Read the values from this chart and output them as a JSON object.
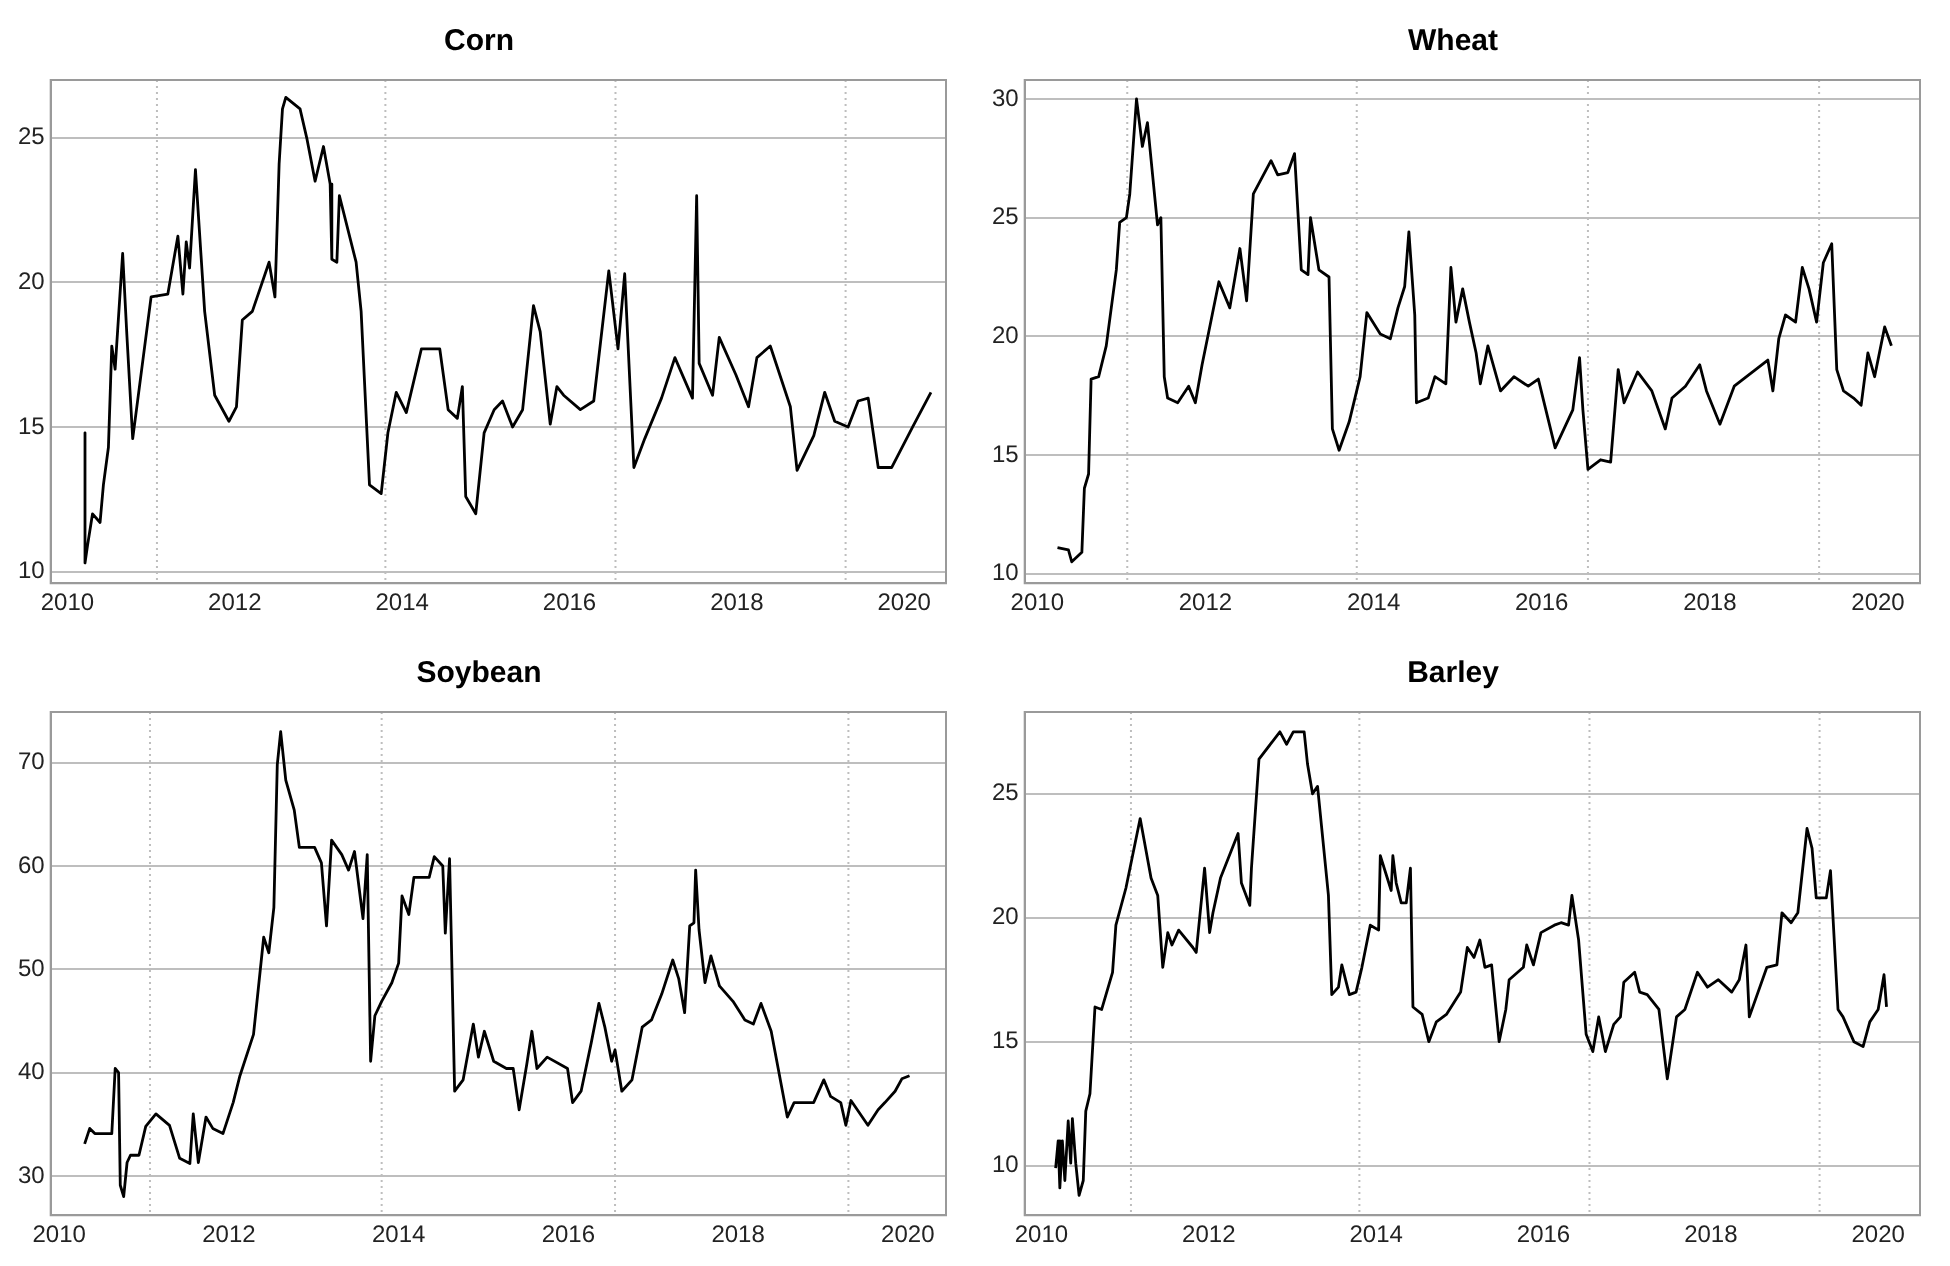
{
  "chart_data": [
    {
      "type": "line",
      "title": "Corn",
      "xlim": [
        2009.8,
        2020.5
      ],
      "xticks": [
        2010,
        2012,
        2014,
        2016,
        2018,
        2020
      ],
      "ylim": [
        9.6,
        27.0
      ],
      "yticks": [
        10,
        15,
        20,
        25
      ],
      "grid": "y",
      "color": "#000000",
      "ref_lines": [
        {
          "axis": "x",
          "value": 2011.07,
          "color": "#bebebe",
          "line_style": "dotted"
        },
        {
          "axis": "x",
          "value": 2013.8,
          "color": "#bebebe",
          "line_style": "dotted"
        },
        {
          "axis": "x",
          "value": 2016.55,
          "color": "#bebebe",
          "line_style": "dotted"
        },
        {
          "axis": "x",
          "value": 2019.3,
          "color": "#bebebe",
          "line_style": "dotted"
        }
      ],
      "x": [
        2010.21,
        2010.21,
        2010.24,
        2010.3,
        2010.39,
        2010.43,
        2010.49,
        2010.53,
        2010.57,
        2010.66,
        2010.71,
        2010.78,
        2011.0,
        2011.2,
        2011.32,
        2011.38,
        2011.42,
        2011.46,
        2011.53,
        2011.64,
        2011.76,
        2011.93,
        2012.02,
        2012.09,
        2012.21,
        2012.41,
        2012.48,
        2012.53,
        2012.57,
        2012.61,
        2012.78,
        2012.86,
        2012.96,
        2013.06,
        2013.14,
        2013.16,
        2013.22,
        2013.25,
        2013.45,
        2013.51,
        2013.61,
        2013.75,
        2013.83,
        2013.93,
        2014.05,
        2014.23,
        2014.45,
        2014.55,
        2014.66,
        2014.72,
        2014.76,
        2014.88,
        2014.98,
        2015.1,
        2015.2,
        2015.32,
        2015.44,
        2015.57,
        2015.65,
        2015.77,
        2015.85,
        2015.93,
        2016.13,
        2016.29,
        2016.47,
        2016.58,
        2016.66,
        2016.77,
        2016.9,
        2017.1,
        2017.26,
        2017.47,
        2017.52,
        2017.55,
        2017.71,
        2017.79,
        2017.99,
        2018.14,
        2018.24,
        2018.4,
        2018.64,
        2018.72,
        2018.92,
        2019.05,
        2019.17,
        2019.33,
        2019.45,
        2019.57,
        2019.69,
        2019.85,
        2020.1,
        2020.32
      ],
      "values": [
        14.8,
        10.3,
        10.9,
        12,
        11.7,
        13,
        14.3,
        17.8,
        17,
        21,
        18.2,
        14.6,
        19.5,
        19.6,
        21.6,
        19.6,
        21.4,
        20.5,
        23.9,
        19,
        16.1,
        15.2,
        15.7,
        18.7,
        19,
        20.7,
        19.5,
        24.1,
        26,
        26.4,
        26,
        25,
        23.5,
        24.7,
        23.4,
        20.8,
        20.7,
        23,
        20.7,
        19,
        13,
        12.7,
        14.8,
        16.2,
        15.5,
        17.7,
        17.7,
        15.6,
        15.3,
        16.4,
        12.6,
        12,
        14.8,
        15.6,
        15.9,
        15,
        15.6,
        19.2,
        18.3,
        15.1,
        16.4,
        16.1,
        15.6,
        15.9,
        20.4,
        17.7,
        20.3,
        13.6,
        14.6,
        16,
        17.4,
        16,
        23,
        17.2,
        16.1,
        18.1,
        16.8,
        15.7,
        17.4,
        17.8,
        15.7,
        13.5,
        14.7,
        16.2,
        15.2,
        15,
        15.9,
        16,
        13.6,
        13.6,
        15,
        16.2
      ]
    },
    {
      "type": "line",
      "title": "Wheat",
      "xlim": [
        2009.85,
        2020.5
      ],
      "xticks": [
        2010,
        2012,
        2014,
        2016,
        2018,
        2020
      ],
      "ylim": [
        9.6,
        30.8
      ],
      "yticks": [
        10,
        15,
        20,
        25,
        30
      ],
      "grid": "y",
      "color": "#000000",
      "ref_lines": [
        {
          "axis": "x",
          "value": 2011.07,
          "color": "#bebebe",
          "line_style": "dotted"
        },
        {
          "axis": "x",
          "value": 2013.8,
          "color": "#bebebe",
          "line_style": "dotted"
        },
        {
          "axis": "x",
          "value": 2016.55,
          "color": "#bebebe",
          "line_style": "dotted"
        },
        {
          "axis": "x",
          "value": 2019.3,
          "color": "#bebebe",
          "line_style": "dotted"
        }
      ],
      "x": [
        2010.24,
        2010.37,
        2010.41,
        2010.53,
        2010.56,
        2010.61,
        2010.64,
        2010.73,
        2010.82,
        2010.94,
        2010.98,
        2011.06,
        2011.1,
        2011.18,
        2011.25,
        2011.31,
        2011.43,
        2011.47,
        2011.51,
        2011.55,
        2011.67,
        2011.8,
        2011.88,
        2011.96,
        2012.08,
        2012.16,
        2012.29,
        2012.41,
        2012.49,
        2012.57,
        2012.78,
        2012.86,
        2012.98,
        2013.06,
        2013.14,
        2013.22,
        2013.25,
        2013.35,
        2013.47,
        2013.51,
        2013.59,
        2013.71,
        2013.84,
        2013.92,
        2014.08,
        2014.2,
        2014.29,
        2014.37,
        2014.42,
        2014.49,
        2014.51,
        2014.65,
        2014.73,
        2014.86,
        2014.92,
        2014.98,
        2015.06,
        2015.14,
        2015.22,
        2015.27,
        2015.36,
        2015.51,
        2015.67,
        2015.84,
        2015.96,
        2016.16,
        2016.37,
        2016.45,
        2016.49,
        2016.55,
        2016.7,
        2016.82,
        2016.91,
        2016.98,
        2017.14,
        2017.31,
        2017.47,
        2017.55,
        2017.71,
        2017.88,
        2017.96,
        2018.12,
        2018.29,
        2018.69,
        2018.75,
        2018.82,
        2018.9,
        2019.02,
        2019.1,
        2019.18,
        2019.27,
        2019.35,
        2019.45,
        2019.51,
        2019.59,
        2019.71,
        2019.8,
        2019.88,
        2019.96,
        2020.08,
        2020.16
      ],
      "values": [
        11.1,
        11,
        10.5,
        10.9,
        13.6,
        14.2,
        18.2,
        18.3,
        19.6,
        22.8,
        24.8,
        25,
        26,
        30,
        28,
        29,
        24.7,
        25,
        18.3,
        17.4,
        17.2,
        17.9,
        17.2,
        18.8,
        20.9,
        22.3,
        21.2,
        23.7,
        21.5,
        26,
        27.4,
        26.8,
        26.9,
        27.7,
        22.8,
        22.6,
        25,
        22.8,
        22.5,
        16.1,
        15.2,
        16.4,
        18.3,
        21,
        20.1,
        19.9,
        21.2,
        22.1,
        24.4,
        20.9,
        17.2,
        17.4,
        18.3,
        18,
        22.9,
        20.6,
        22,
        20.6,
        19.3,
        18,
        19.6,
        17.7,
        18.3,
        17.9,
        18.2,
        15.3,
        16.9,
        19.1,
        16.9,
        14.4,
        14.8,
        14.7,
        18.6,
        17.2,
        18.5,
        17.7,
        16.1,
        17.4,
        17.9,
        18.8,
        17.7,
        16.3,
        17.9,
        19,
        17.7,
        19.9,
        20.9,
        20.6,
        22.9,
        22,
        20.6,
        23.1,
        23.9,
        18.6,
        17.7,
        17.4,
        17.1,
        19.3,
        18.3,
        20.4,
        19.6
      ]
    },
    {
      "type": "line",
      "title": "Soybean",
      "xlim": [
        2009.9,
        2020.45
      ],
      "xticks": [
        2010,
        2012,
        2014,
        2016,
        2018,
        2020
      ],
      "ylim": [
        26.2,
        74.9
      ],
      "yticks": [
        30,
        40,
        50,
        60,
        70
      ],
      "grid": "y",
      "color": "#000000",
      "ref_lines": [
        {
          "axis": "x",
          "value": 2011.07,
          "color": "#bebebe",
          "line_style": "dotted"
        },
        {
          "axis": "x",
          "value": 2013.8,
          "color": "#bebebe",
          "line_style": "dotted"
        },
        {
          "axis": "x",
          "value": 2016.55,
          "color": "#bebebe",
          "line_style": "dotted"
        },
        {
          "axis": "x",
          "value": 2019.3,
          "color": "#bebebe",
          "line_style": "dotted"
        }
      ],
      "x": [
        2010.3,
        2010.36,
        2010.42,
        2010.62,
        2010.66,
        2010.7,
        2010.72,
        2010.76,
        2010.8,
        2010.84,
        2010.94,
        2011.02,
        2011.14,
        2011.3,
        2011.42,
        2011.54,
        2011.58,
        2011.64,
        2011.73,
        2011.81,
        2011.93,
        2012.05,
        2012.13,
        2012.29,
        2012.41,
        2012.47,
        2012.53,
        2012.57,
        2012.61,
        2012.67,
        2012.77,
        2012.83,
        2013.01,
        2013.09,
        2013.15,
        2013.21,
        2013.33,
        2013.41,
        2013.48,
        2013.58,
        2013.63,
        2013.67,
        2013.72,
        2013.8,
        2013.92,
        2014.0,
        2014.04,
        2014.12,
        2014.18,
        2014.36,
        2014.42,
        2014.52,
        2014.55,
        2014.6,
        2014.66,
        2014.76,
        2014.88,
        2014.94,
        2015.01,
        2015.12,
        2015.27,
        2015.35,
        2015.42,
        2015.51,
        2015.57,
        2015.63,
        2015.75,
        2015.99,
        2016.05,
        2016.15,
        2016.27,
        2016.36,
        2016.43,
        2016.51,
        2016.55,
        2016.63,
        2016.75,
        2016.87,
        2016.98,
        2017.1,
        2017.23,
        2017.3,
        2017.37,
        2017.43,
        2017.48,
        2017.5,
        2017.54,
        2017.61,
        2017.68,
        2017.78,
        2017.94,
        2018.08,
        2018.18,
        2018.27,
        2018.39,
        2018.58,
        2018.66,
        2018.89,
        2019.01,
        2019.09,
        2019.21,
        2019.27,
        2019.33,
        2019.53,
        2019.65,
        2019.73,
        2019.85,
        2019.93,
        2020.02
      ],
      "values": [
        33.1,
        34.6,
        34.1,
        34.1,
        40.4,
        40,
        29.1,
        28,
        31.3,
        32,
        32,
        34.8,
        36,
        34.9,
        31.7,
        31.2,
        36,
        31.3,
        35.7,
        34.6,
        34.1,
        37.1,
        39.7,
        43.7,
        53.1,
        51.6,
        56,
        69.8,
        73,
        68.3,
        65.4,
        61.8,
        61.8,
        60.3,
        54.2,
        62.5,
        61.1,
        59.6,
        61.4,
        54.9,
        61.1,
        41.1,
        45.5,
        46.9,
        48.7,
        50.6,
        57.1,
        55.3,
        58.9,
        58.9,
        60.9,
        60,
        53.5,
        60.7,
        38.2,
        39.3,
        44.7,
        41.5,
        44,
        41.1,
        40.4,
        40.4,
        36.4,
        40.8,
        44,
        40.4,
        41.5,
        40.4,
        37.1,
        38.2,
        42.9,
        46.7,
        44.4,
        41.1,
        42.2,
        38.2,
        39.3,
        44.4,
        45.1,
        47.6,
        50.9,
        49.1,
        45.8,
        54.2,
        54.5,
        59.6,
        53.8,
        48.7,
        51.3,
        48.4,
        46.9,
        45.1,
        44.7,
        46.7,
        44,
        35.7,
        37.1,
        37.1,
        39.3,
        37.7,
        37.1,
        34.9,
        37.3,
        34.9,
        36.4,
        37.1,
        38.2,
        39.4,
        39.7
      ]
    },
    {
      "type": "line",
      "title": "Barley",
      "xlim": [
        2009.8,
        2020.5
      ],
      "xticks": [
        2010,
        2012,
        2014,
        2016,
        2018,
        2020
      ],
      "ylim": [
        8.0,
        28.3
      ],
      "yticks": [
        10,
        15,
        20,
        25
      ],
      "grid": "y",
      "color": "#000000",
      "ref_lines": [
        {
          "axis": "x",
          "value": 2011.07,
          "color": "#bebebe",
          "line_style": "dotted"
        },
        {
          "axis": "x",
          "value": 2013.8,
          "color": "#bebebe",
          "line_style": "dotted"
        },
        {
          "axis": "x",
          "value": 2016.55,
          "color": "#bebebe",
          "line_style": "dotted"
        },
        {
          "axis": "x",
          "value": 2019.3,
          "color": "#bebebe",
          "line_style": "dotted"
        }
      ],
      "x": [
        2010.17,
        2010.2,
        2010.22,
        2010.25,
        2010.28,
        2010.32,
        2010.35,
        2010.37,
        2010.41,
        2010.45,
        2010.5,
        2010.53,
        2010.58,
        2010.64,
        2010.72,
        2010.85,
        2010.89,
        2011.01,
        2011.18,
        2011.31,
        2011.39,
        2011.45,
        2011.51,
        2011.56,
        2011.64,
        2011.81,
        2011.85,
        2011.95,
        2012.01,
        2012.05,
        2012.14,
        2012.35,
        2012.39,
        2012.49,
        2012.51,
        2012.6,
        2012.85,
        2012.93,
        2013.01,
        2013.14,
        2013.18,
        2013.24,
        2013.3,
        2013.43,
        2013.47,
        2013.55,
        2013.59,
        2013.68,
        2013.76,
        2013.83,
        2013.93,
        2014.03,
        2014.05,
        2014.18,
        2014.2,
        2014.24,
        2014.3,
        2014.36,
        2014.41,
        2014.44,
        2014.55,
        2014.63,
        2014.72,
        2014.84,
        2015.01,
        2015.09,
        2015.17,
        2015.24,
        2015.3,
        2015.38,
        2015.47,
        2015.55,
        2015.59,
        2015.76,
        2015.8,
        2015.88,
        2015.97,
        2016.13,
        2016.21,
        2016.3,
        2016.34,
        2016.42,
        2016.51,
        2016.59,
        2016.66,
        2016.74,
        2016.84,
        2016.92,
        2016.96,
        2017.09,
        2017.15,
        2017.24,
        2017.38,
        2017.48,
        2017.59,
        2017.69,
        2017.84,
        2017.96,
        2018.09,
        2018.25,
        2018.34,
        2018.42,
        2018.46,
        2018.67,
        2018.79,
        2018.85,
        2018.96,
        2019.04,
        2019.15,
        2019.21,
        2019.26,
        2019.38,
        2019.43,
        2019.52,
        2019.58,
        2019.71,
        2019.82,
        2019.9,
        2020.0,
        2020.07,
        2020.1
      ],
      "values": [
        9.9,
        11,
        9.1,
        11,
        9.4,
        11.8,
        10.1,
        11.9,
        10.1,
        8.8,
        9.4,
        12.2,
        12.9,
        16.4,
        16.3,
        17.8,
        19.7,
        21.2,
        24,
        21.6,
        20.9,
        18,
        19.4,
        18.9,
        19.5,
        18.8,
        18.6,
        22,
        19.4,
        20.2,
        21.6,
        23.4,
        21.4,
        20.5,
        22,
        26.4,
        27.5,
        27,
        27.5,
        27.5,
        26.2,
        25,
        25.3,
        20.9,
        16.9,
        17.2,
        18.1,
        16.9,
        17,
        18,
        19.7,
        19.5,
        22.5,
        21.1,
        22.5,
        21.4,
        20.6,
        20.6,
        22,
        16.4,
        16.1,
        15,
        15.8,
        16.1,
        17,
        18.8,
        18.4,
        19.1,
        18,
        18.1,
        15,
        16.3,
        17.5,
        18,
        18.9,
        18.1,
        19.4,
        19.7,
        19.8,
        19.7,
        20.9,
        19.1,
        15.3,
        14.6,
        16,
        14.6,
        15.7,
        16,
        17.4,
        17.8,
        17,
        16.9,
        16.3,
        13.5,
        16,
        16.3,
        17.8,
        17.2,
        17.5,
        17,
        17.5,
        18.9,
        16,
        18,
        18.1,
        20.2,
        19.8,
        20.2,
        23.6,
        22.8,
        20.8,
        20.8,
        21.9,
        16.3,
        16,
        15,
        14.8,
        15.8,
        16.3,
        17.7,
        16.4
      ]
    }
  ]
}
